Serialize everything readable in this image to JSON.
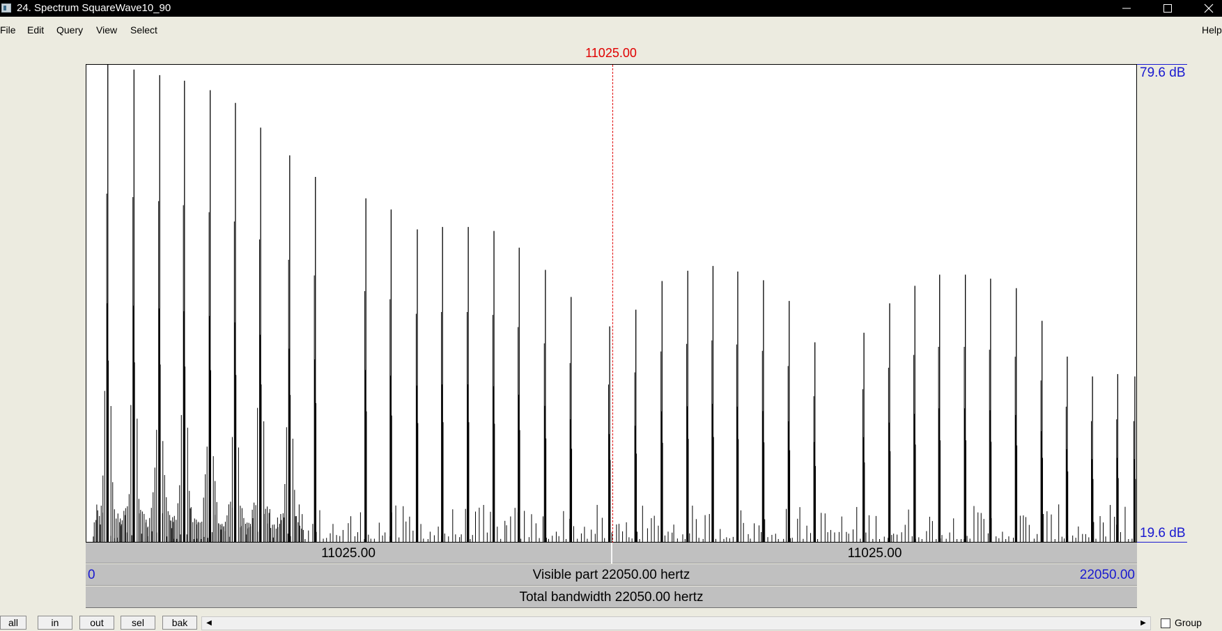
{
  "window": {
    "title": "24. Spectrum SquareWave10_90",
    "minimize_icon": "minimize-icon",
    "maximize_icon": "maximize-icon",
    "close_icon": "close-icon"
  },
  "menu": {
    "file": "File",
    "edit": "Edit",
    "query": "Query",
    "view": "View",
    "select": "Select",
    "help": "Help"
  },
  "cursor": {
    "label": "11025.00",
    "frequency": 11025.0
  },
  "y_axis": {
    "top": "79.6 dB",
    "bottom": "19.6 dB",
    "top_value": 79.6,
    "bottom_value": 19.6
  },
  "bars": {
    "half_left": "11025.00",
    "half_right": "11025.00",
    "visible_left": "0",
    "visible_center": "Visible part 22050.00 hertz",
    "visible_right": "22050.00",
    "total": "Total bandwidth 22050.00 hertz"
  },
  "buttons": {
    "all": "all",
    "in": "in",
    "out": "out",
    "sel": "sel",
    "bak": "bak"
  },
  "group": {
    "label": "Group",
    "checked": false
  },
  "colors": {
    "cursor": "#e00000",
    "axis_labels": "#1919d0",
    "bars": "#c0c0c0"
  },
  "chart_data": {
    "type": "bar",
    "title": "",
    "xlabel": "",
    "ylabel": "",
    "xlim": [
      0,
      22050
    ],
    "ylim": [
      19.6,
      79.6
    ],
    "peaks": {
      "freq": [
        450,
        1000,
        1540,
        2060,
        2600,
        3130,
        3660,
        4270,
        4810,
        5870,
        6400,
        6950,
        7480,
        8020,
        8560,
        9090,
        9640,
        10180,
        10990,
        11540,
        12090,
        12630,
        13160,
        13680,
        14220,
        14760,
        15300,
        16330,
        16870,
        17400,
        17920,
        18460,
        18990,
        19530,
        20070,
        20600,
        21130,
        21660,
        22020
      ],
      "db": [
        79.6,
        79.0,
        78.3,
        77.6,
        76.4,
        74.8,
        71.7,
        68.2,
        65.5,
        62.8,
        61.4,
        58.9,
        59.2,
        59.2,
        58.7,
        56.6,
        53.8,
        50.4,
        46.7,
        48.8,
        52.4,
        53.7,
        54.3,
        53.6,
        52.5,
        49.9,
        44.7,
        45.9,
        49.6,
        51.8,
        53.2,
        53.2,
        52.7,
        51.5,
        47.4,
        42.9,
        40.4,
        40.7,
        40.4
      ]
    }
  }
}
